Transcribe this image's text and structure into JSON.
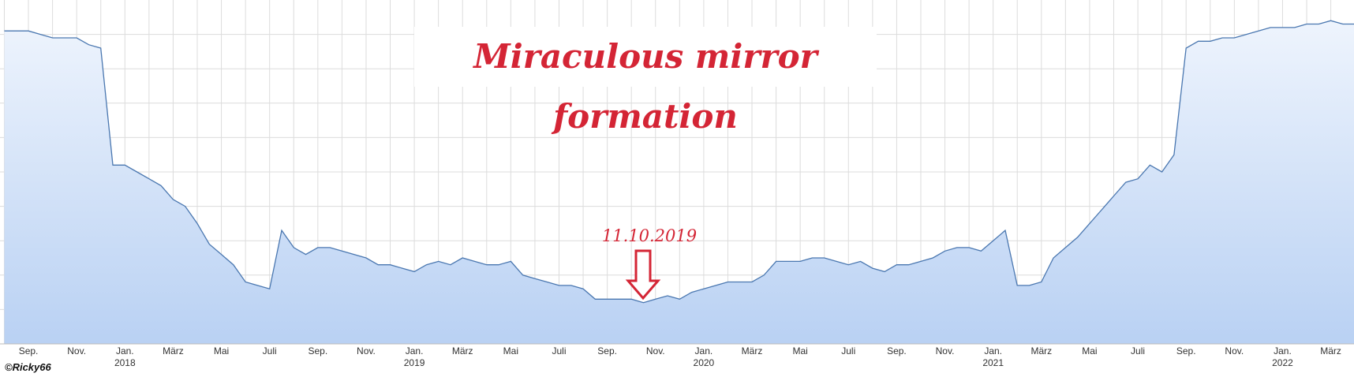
{
  "chart_data": {
    "type": "area",
    "title": "Miraculous mirror formation",
    "annotation": "11.10.2019",
    "credit": "©Ricky66",
    "color": "#4a77b0",
    "fill_top": "#eef4fd",
    "fill_bottom": "#b9d1f3",
    "grid": true,
    "show_ytick_labels": false,
    "ylim": [
      0,
      100
    ],
    "yticks": [
      10,
      20,
      30,
      40,
      50,
      60,
      70,
      80,
      90
    ],
    "categories": [
      null,
      null,
      "Sep.",
      null,
      null,
      null,
      "Nov.",
      null,
      null,
      null,
      "Jan.\n2018",
      null,
      null,
      null,
      "März",
      null,
      null,
      null,
      "Mai",
      null,
      null,
      null,
      "Juli",
      null,
      null,
      null,
      "Sep.",
      null,
      null,
      null,
      "Nov.",
      null,
      null,
      null,
      "Jan.\n2019",
      null,
      null,
      null,
      "März",
      null,
      null,
      null,
      "Mai",
      null,
      null,
      null,
      "Juli",
      null,
      null,
      null,
      "Sep.",
      null,
      null,
      null,
      "Nov.",
      null,
      null,
      null,
      "Jan.\n2020",
      null,
      null,
      null,
      "März",
      null,
      null,
      null,
      "Mai",
      null,
      null,
      null,
      "Juli",
      null,
      null,
      null,
      "Sep.",
      null,
      null,
      null,
      "Nov.",
      null,
      null,
      null,
      "Jan.\n2021",
      null,
      null,
      null,
      "März",
      null,
      null,
      null,
      "Mai",
      null,
      null,
      null,
      "Juli",
      null,
      null,
      null,
      "Sep.",
      null,
      null,
      null,
      "Nov.",
      null,
      null,
      null,
      "Jan.\n2022",
      null,
      null,
      null,
      "März",
      null,
      null
    ],
    "values": [
      91,
      91,
      91,
      90,
      89,
      89,
      89,
      87,
      86,
      52,
      52,
      50,
      48,
      46,
      42,
      40,
      35,
      29,
      26,
      23,
      18,
      17,
      16,
      33,
      28,
      26,
      28,
      28,
      27,
      26,
      25,
      23,
      23,
      22,
      21,
      23,
      24,
      23,
      25,
      24,
      23,
      23,
      24,
      20,
      19,
      18,
      17,
      17,
      16,
      13,
      13,
      13,
      13,
      12,
      13,
      14,
      13,
      15,
      16,
      17,
      18,
      18,
      18,
      20,
      24,
      24,
      24,
      25,
      25,
      24,
      23,
      24,
      22,
      21,
      23,
      23,
      24,
      25,
      27,
      28,
      28,
      27,
      30,
      33,
      17,
      17,
      18,
      25,
      28,
      31,
      35,
      39,
      43,
      47,
      48,
      52,
      50,
      55,
      86,
      88,
      88,
      89,
      89,
      90,
      91,
      92,
      92,
      92,
      93,
      93,
      94,
      93,
      93
    ]
  }
}
